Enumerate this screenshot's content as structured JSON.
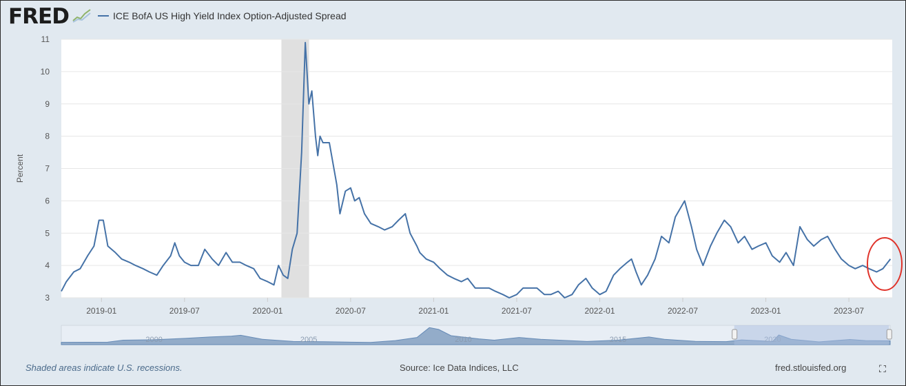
{
  "header": {
    "logo": "FRED",
    "legend_label": "ICE BofA US High Yield Index Option-Adjusted Spread"
  },
  "footer": {
    "recession_note": "Shaded areas indicate U.S. recessions.",
    "source": "Source: Ice Data Indices, LLC",
    "site": "fred.stlouisfed.org"
  },
  "colors": {
    "series": "#4572a7",
    "recession": "#e0e0e0",
    "annotation": "#e0332a"
  },
  "chart_data": {
    "type": "line",
    "title": "ICE BofA US High Yield Index Option-Adjusted Spread",
    "ylabel": "Percent",
    "xlabel": "",
    "ylim": [
      3,
      11
    ],
    "yticks": [
      3,
      4,
      5,
      6,
      7,
      8,
      9,
      10,
      11
    ],
    "xticks": [
      "2019-01",
      "2019-07",
      "2020-01",
      "2020-07",
      "2021-01",
      "2021-07",
      "2022-01",
      "2022-07",
      "2023-01",
      "2023-07"
    ],
    "xrange": [
      "2018-10-04",
      "2023-10-05"
    ],
    "grid": true,
    "recessions": [
      [
        "2020-02-01",
        "2020-04-01"
      ]
    ],
    "annotation": {
      "type": "circle",
      "around": "2023-09 to 2023-10 values"
    },
    "series": [
      {
        "name": "ICE BofA US High Yield Index Option-Adjusted Spread",
        "points": [
          [
            "2018-10-04",
            3.2
          ],
          [
            "2018-10-15",
            3.5
          ],
          [
            "2018-11-01",
            3.8
          ],
          [
            "2018-11-15",
            3.9
          ],
          [
            "2018-12-01",
            4.3
          ],
          [
            "2018-12-15",
            4.6
          ],
          [
            "2018-12-26",
            5.4
          ],
          [
            "2019-01-05",
            5.4
          ],
          [
            "2019-01-15",
            4.6
          ],
          [
            "2019-02-01",
            4.4
          ],
          [
            "2019-02-15",
            4.2
          ],
          [
            "2019-03-01",
            4.1
          ],
          [
            "2019-03-15",
            4.0
          ],
          [
            "2019-04-01",
            3.9
          ],
          [
            "2019-04-15",
            3.8
          ],
          [
            "2019-05-01",
            3.7
          ],
          [
            "2019-05-15",
            4.0
          ],
          [
            "2019-06-01",
            4.3
          ],
          [
            "2019-06-10",
            4.7
          ],
          [
            "2019-06-20",
            4.3
          ],
          [
            "2019-07-01",
            4.1
          ],
          [
            "2019-07-15",
            4.0
          ],
          [
            "2019-08-01",
            4.0
          ],
          [
            "2019-08-15",
            4.5
          ],
          [
            "2019-09-01",
            4.2
          ],
          [
            "2019-09-15",
            4.0
          ],
          [
            "2019-10-01",
            4.4
          ],
          [
            "2019-10-15",
            4.1
          ],
          [
            "2019-11-01",
            4.1
          ],
          [
            "2019-11-15",
            4.0
          ],
          [
            "2019-12-01",
            3.9
          ],
          [
            "2019-12-15",
            3.6
          ],
          [
            "2020-01-01",
            3.5
          ],
          [
            "2020-01-15",
            3.4
          ],
          [
            "2020-01-25",
            4.0
          ],
          [
            "2020-02-05",
            3.7
          ],
          [
            "2020-02-15",
            3.6
          ],
          [
            "2020-02-25",
            4.5
          ],
          [
            "2020-03-05",
            5.0
          ],
          [
            "2020-03-15",
            7.5
          ],
          [
            "2020-03-23",
            10.9
          ],
          [
            "2020-03-31",
            9.0
          ],
          [
            "2020-04-07",
            9.4
          ],
          [
            "2020-04-15",
            8.0
          ],
          [
            "2020-04-20",
            7.4
          ],
          [
            "2020-04-25",
            8.0
          ],
          [
            "2020-05-01",
            7.8
          ],
          [
            "2020-05-15",
            7.8
          ],
          [
            "2020-06-01",
            6.5
          ],
          [
            "2020-06-08",
            5.6
          ],
          [
            "2020-06-20",
            6.3
          ],
          [
            "2020-07-01",
            6.4
          ],
          [
            "2020-07-10",
            6.0
          ],
          [
            "2020-07-20",
            6.1
          ],
          [
            "2020-08-01",
            5.6
          ],
          [
            "2020-08-15",
            5.3
          ],
          [
            "2020-09-01",
            5.2
          ],
          [
            "2020-09-15",
            5.1
          ],
          [
            "2020-10-01",
            5.2
          ],
          [
            "2020-10-15",
            5.4
          ],
          [
            "2020-10-30",
            5.6
          ],
          [
            "2020-11-10",
            5.0
          ],
          [
            "2020-11-25",
            4.6
          ],
          [
            "2020-12-01",
            4.4
          ],
          [
            "2020-12-15",
            4.2
          ],
          [
            "2021-01-01",
            4.1
          ],
          [
            "2021-01-15",
            3.9
          ],
          [
            "2021-02-01",
            3.7
          ],
          [
            "2021-02-15",
            3.6
          ],
          [
            "2021-03-01",
            3.5
          ],
          [
            "2021-03-15",
            3.6
          ],
          [
            "2021-04-01",
            3.3
          ],
          [
            "2021-04-15",
            3.3
          ],
          [
            "2021-05-01",
            3.3
          ],
          [
            "2021-05-15",
            3.2
          ],
          [
            "2021-06-01",
            3.1
          ],
          [
            "2021-06-15",
            3.0
          ],
          [
            "2021-07-01",
            3.1
          ],
          [
            "2021-07-15",
            3.3
          ],
          [
            "2021-08-01",
            3.3
          ],
          [
            "2021-08-15",
            3.3
          ],
          [
            "2021-09-01",
            3.1
          ],
          [
            "2021-09-15",
            3.1
          ],
          [
            "2021-10-01",
            3.2
          ],
          [
            "2021-10-15",
            3.0
          ],
          [
            "2021-11-01",
            3.1
          ],
          [
            "2021-11-15",
            3.4
          ],
          [
            "2021-12-01",
            3.6
          ],
          [
            "2021-12-15",
            3.3
          ],
          [
            "2022-01-01",
            3.1
          ],
          [
            "2022-01-15",
            3.2
          ],
          [
            "2022-02-01",
            3.7
          ],
          [
            "2022-02-15",
            3.9
          ],
          [
            "2022-03-01",
            4.1
          ],
          [
            "2022-03-10",
            4.2
          ],
          [
            "2022-03-20",
            3.8
          ],
          [
            "2022-04-01",
            3.4
          ],
          [
            "2022-04-15",
            3.7
          ],
          [
            "2022-05-01",
            4.2
          ],
          [
            "2022-05-15",
            4.9
          ],
          [
            "2022-06-01",
            4.7
          ],
          [
            "2022-06-15",
            5.5
          ],
          [
            "2022-07-05",
            6.0
          ],
          [
            "2022-07-20",
            5.2
          ],
          [
            "2022-08-01",
            4.5
          ],
          [
            "2022-08-15",
            4.0
          ],
          [
            "2022-09-01",
            4.6
          ],
          [
            "2022-09-15",
            5.0
          ],
          [
            "2022-10-01",
            5.4
          ],
          [
            "2022-10-15",
            5.2
          ],
          [
            "2022-11-01",
            4.7
          ],
          [
            "2022-11-15",
            4.9
          ],
          [
            "2022-12-01",
            4.5
          ],
          [
            "2022-12-15",
            4.6
          ],
          [
            "2023-01-01",
            4.7
          ],
          [
            "2023-01-15",
            4.3
          ],
          [
            "2023-02-01",
            4.1
          ],
          [
            "2023-02-15",
            4.4
          ],
          [
            "2023-03-01",
            4.0
          ],
          [
            "2023-03-15",
            5.2
          ],
          [
            "2023-04-01",
            4.8
          ],
          [
            "2023-04-15",
            4.6
          ],
          [
            "2023-05-01",
            4.8
          ],
          [
            "2023-05-15",
            4.9
          ],
          [
            "2023-06-01",
            4.5
          ],
          [
            "2023-06-15",
            4.2
          ],
          [
            "2023-07-01",
            4.0
          ],
          [
            "2023-07-15",
            3.9
          ],
          [
            "2023-08-01",
            4.0
          ],
          [
            "2023-08-15",
            3.9
          ],
          [
            "2023-09-01",
            3.8
          ],
          [
            "2023-09-15",
            3.9
          ],
          [
            "2023-10-01",
            4.2
          ]
        ]
      }
    ],
    "navigator": {
      "labels": [
        "2000",
        "2005",
        "2010",
        "2015",
        "2020"
      ],
      "range_years": [
        1997,
        2023.8
      ],
      "selected": [
        "2018-10-04",
        "2023-10-05"
      ],
      "points": [
        [
          1997,
          2.6
        ],
        [
          1998.5,
          2.8
        ],
        [
          1999,
          5
        ],
        [
          2000,
          5.5
        ],
        [
          2001,
          7
        ],
        [
          2001.8,
          8.5
        ],
        [
          2002.5,
          9.5
        ],
        [
          2002.8,
          10.5
        ],
        [
          2003.5,
          6
        ],
        [
          2004.5,
          3.5
        ],
        [
          2005.5,
          3.2
        ],
        [
          2007,
          2.5
        ],
        [
          2007.8,
          4.5
        ],
        [
          2008.5,
          8
        ],
        [
          2008.9,
          19
        ],
        [
          2009.2,
          17
        ],
        [
          2009.6,
          10
        ],
        [
          2010.5,
          6.5
        ],
        [
          2011,
          5
        ],
        [
          2011.8,
          8
        ],
        [
          2012.5,
          6
        ],
        [
          2014,
          3.5
        ],
        [
          2015,
          5
        ],
        [
          2016,
          8.5
        ],
        [
          2016.5,
          6
        ],
        [
          2017.5,
          3.6
        ],
        [
          2018.5,
          3.4
        ],
        [
          2019,
          5.3
        ],
        [
          2020,
          3.5
        ],
        [
          2020.2,
          10.8
        ],
        [
          2020.6,
          6
        ],
        [
          2021.5,
          3.1
        ],
        [
          2022.5,
          5.8
        ],
        [
          2023,
          4.5
        ],
        [
          2023.8,
          4.2
        ]
      ]
    }
  }
}
